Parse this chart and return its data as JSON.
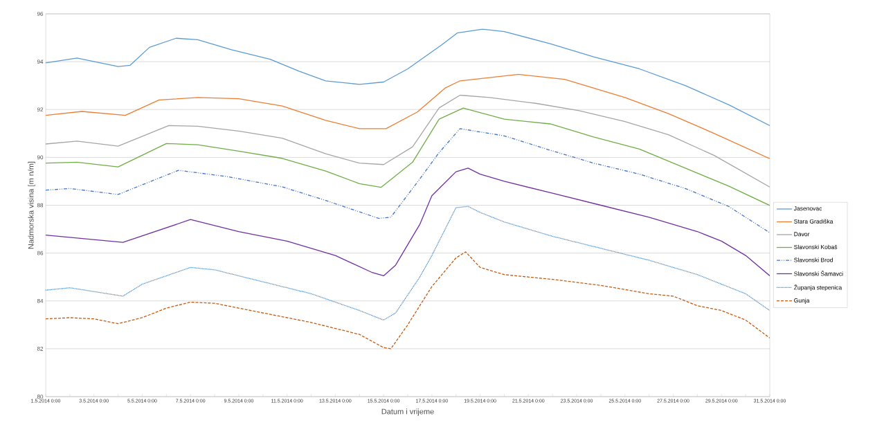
{
  "chart_data": {
    "type": "line",
    "xlabel": "Datum i vrijeme",
    "ylabel": "Nadmorska visina [m n/m]",
    "xlim": [
      "2014-05-01T00:00",
      "2014-05-31T00:00"
    ],
    "xticks": [
      {
        "value": "2014-05-01",
        "label": "1.5.2014 0:00"
      },
      {
        "value": "2014-05-02",
        "label": null
      },
      {
        "value": "2014-05-03",
        "label": "3.5.2014 0:00"
      },
      {
        "value": "2014-05-04",
        "label": null
      },
      {
        "value": "2014-05-05",
        "label": "5.5.2014 0:00"
      },
      {
        "value": "2014-05-06",
        "label": null
      },
      {
        "value": "2014-05-07",
        "label": "7.5.2014 0:00"
      },
      {
        "value": "2014-05-08",
        "label": null
      },
      {
        "value": "2014-05-09",
        "label": "9.5.2014 0:00"
      },
      {
        "value": "2014-05-10",
        "label": null
      },
      {
        "value": "2014-05-11",
        "label": "11.5.2014 0:00"
      },
      {
        "value": "2014-05-12",
        "label": null
      },
      {
        "value": "2014-05-13",
        "label": "13.5.2014 0:00"
      },
      {
        "value": "2014-05-14",
        "label": null
      },
      {
        "value": "2014-05-15",
        "label": "15.5.2014 0:00"
      },
      {
        "value": "2014-05-16",
        "label": null
      },
      {
        "value": "2014-05-17",
        "label": "17.5.2014 0:00"
      },
      {
        "value": "2014-05-18",
        "label": null
      },
      {
        "value": "2014-05-19",
        "label": "19.5.2014 0:00"
      },
      {
        "value": "2014-05-20",
        "label": null
      },
      {
        "value": "2014-05-21",
        "label": "21.5.2014 0:00"
      },
      {
        "value": "2014-05-22",
        "label": null
      },
      {
        "value": "2014-05-23",
        "label": "23.5.2014 0:00"
      },
      {
        "value": "2014-05-24",
        "label": null
      },
      {
        "value": "2014-05-25",
        "label": "25.5.2014 0:00"
      },
      {
        "value": "2014-05-26",
        "label": null
      },
      {
        "value": "2014-05-27",
        "label": "27.5.2014 0:00"
      },
      {
        "value": "2014-05-28",
        "label": null
      },
      {
        "value": "2014-05-29",
        "label": "29.5.2014 0:00"
      },
      {
        "value": "2014-05-30",
        "label": null
      },
      {
        "value": "2014-05-31",
        "label": "31.5.2014 0:00"
      }
    ],
    "ylim": [
      80,
      96
    ],
    "yticks": [
      80,
      82,
      84,
      86,
      88,
      90,
      92,
      94,
      96
    ],
    "grid": "y",
    "legend": "right",
    "series": [
      {
        "name": "Jasenovac",
        "color": "#5b9bd5",
        "line_style": "solid",
        "x": [
          "2014-05-01T00:00",
          "2014-05-02T07:12",
          "2014-05-04T00:00",
          "2014-05-04T12:00",
          "2014-05-05T07:12",
          "2014-05-06T09:36",
          "2014-05-07T07:12",
          "2014-05-08T16:48",
          "2014-05-10T07:12",
          "2014-05-11T12:00",
          "2014-05-12T14:24",
          "2014-05-14T00:00",
          "2014-05-15T00:00",
          "2014-05-16T00:00",
          "2014-05-17T09:36",
          "2014-05-18T01:12",
          "2014-05-19T02:24",
          "2014-05-20T00:00",
          "2014-05-21T21:36",
          "2014-05-23T16:48",
          "2014-05-25T14:24",
          "2014-05-27T12:00",
          "2014-05-29T07:12",
          "2014-05-31T00:00"
        ],
        "values": [
          93.95,
          94.15,
          93.8,
          93.85,
          94.6,
          94.98,
          94.92,
          94.5,
          94.1,
          93.6,
          93.2,
          93.05,
          93.15,
          93.7,
          94.7,
          95.2,
          95.36,
          95.26,
          94.75,
          94.2,
          93.7,
          93.0,
          92.2,
          91.33
        ]
      },
      {
        "name": "Stara Gradiška",
        "color": "#ed7d31",
        "line_style": "solid",
        "x": [
          "2014-05-01T00:00",
          "2014-05-02T12:00",
          "2014-05-04T07:12",
          "2014-05-05T16:48",
          "2014-05-07T07:12",
          "2014-05-09T00:00",
          "2014-05-10T19:12",
          "2014-05-12T14:24",
          "2014-05-14T00:00",
          "2014-05-15T02:24",
          "2014-05-16T09:36",
          "2014-05-17T13:12",
          "2014-05-18T04:00",
          "2014-05-20T14:24",
          "2014-05-22T12:00",
          "2014-05-25T00:00",
          "2014-05-26T19:12",
          "2014-05-28T16:48",
          "2014-05-31T00:00"
        ],
        "values": [
          91.76,
          91.92,
          91.76,
          92.4,
          92.5,
          92.45,
          92.15,
          91.55,
          91.2,
          91.2,
          91.9,
          92.9,
          93.2,
          93.47,
          93.26,
          92.5,
          91.83,
          91.0,
          89.95
        ]
      },
      {
        "name": "Davor",
        "color": "#a5a5a5",
        "line_style": "solid",
        "x": [
          "2014-05-01T00:00",
          "2014-05-02T07:12",
          "2014-05-04T00:00",
          "2014-05-06T02:24",
          "2014-05-07T07:12",
          "2014-05-09T00:00",
          "2014-05-10T19:12",
          "2014-05-12T14:24",
          "2014-05-14T00:00",
          "2014-05-15T00:00",
          "2014-05-16T04:48",
          "2014-05-17T07:12",
          "2014-05-18T04:00",
          "2014-05-19T09:36",
          "2014-05-21T07:12",
          "2014-05-23T02:24",
          "2014-05-25T00:00",
          "2014-05-26T19:12",
          "2014-05-28T16:48",
          "2014-05-31T00:00"
        ],
        "values": [
          90.56,
          90.68,
          90.47,
          91.33,
          91.3,
          91.1,
          90.8,
          90.15,
          89.76,
          89.7,
          90.44,
          92.07,
          92.6,
          92.5,
          92.26,
          91.95,
          91.5,
          90.95,
          90.08,
          88.76
        ]
      },
      {
        "name": "Slavonski Kobaš",
        "color": "#70ad47",
        "line_style": "solid",
        "x": [
          "2014-05-01T00:00",
          "2014-05-02T07:12",
          "2014-05-04T00:00",
          "2014-05-06T00:00",
          "2014-05-07T07:12",
          "2014-05-09T00:00",
          "2014-05-10T19:12",
          "2014-05-12T14:24",
          "2014-05-14T00:00",
          "2014-05-14T21:36",
          "2014-05-16T04:48",
          "2014-05-17T07:12",
          "2014-05-18T07:12",
          "2014-05-20T00:00",
          "2014-05-21T21:36",
          "2014-05-23T16:48",
          "2014-05-25T14:24",
          "2014-05-27T12:00",
          "2014-05-29T07:12",
          "2014-05-31T00:00"
        ],
        "values": [
          89.76,
          89.8,
          89.6,
          90.58,
          90.53,
          90.26,
          89.96,
          89.43,
          88.9,
          88.75,
          89.8,
          91.6,
          92.06,
          91.6,
          91.4,
          90.85,
          90.35,
          89.55,
          88.8,
          87.99
        ]
      },
      {
        "name": "Slavonski Brod",
        "color": "#4472c4",
        "line_style": "dashdot",
        "x": [
          "2014-05-01T00:00",
          "2014-05-02T00:00",
          "2014-05-04T00:00",
          "2014-05-06T12:00",
          "2014-05-08T12:00",
          "2014-05-10T19:12",
          "2014-05-12T14:24",
          "2014-05-14T19:12",
          "2014-05-15T07:12",
          "2014-05-16T12:00",
          "2014-05-17T07:12",
          "2014-05-18T04:00",
          "2014-05-20T00:00",
          "2014-05-21T21:36",
          "2014-05-23T16:48",
          "2014-05-25T14:24",
          "2014-05-27T12:00",
          "2014-05-29T07:12",
          "2014-05-31T00:00"
        ],
        "values": [
          88.63,
          88.7,
          88.45,
          89.46,
          89.2,
          88.77,
          88.2,
          87.45,
          87.5,
          89.1,
          90.2,
          91.2,
          90.9,
          90.3,
          89.76,
          89.3,
          88.7,
          87.95,
          86.85
        ]
      },
      {
        "name": "Slavonski Šamavci",
        "color": "#7030a0",
        "line_style": "solid",
        "x": [
          "2014-05-01T00:00",
          "2014-05-04T04:48",
          "2014-05-07T00:00",
          "2014-05-09T00:00",
          "2014-05-11T00:00",
          "2014-05-13T00:00",
          "2014-05-14T12:00",
          "2014-05-15T00:00",
          "2014-05-15T12:00",
          "2014-05-16T12:00",
          "2014-05-17T00:00",
          "2014-05-18T00:00",
          "2014-05-18T12:00",
          "2014-05-19T00:00",
          "2014-05-20T00:00",
          "2014-05-22T00:00",
          "2014-05-24T00:00",
          "2014-05-26T00:00",
          "2014-05-28T00:00",
          "2014-05-29T00:00",
          "2014-05-30T00:00",
          "2014-05-31T00:00"
        ],
        "values": [
          86.75,
          86.45,
          87.4,
          86.9,
          86.5,
          85.9,
          85.2,
          85.05,
          85.5,
          87.2,
          88.4,
          89.4,
          89.55,
          89.3,
          89.0,
          88.5,
          88.0,
          87.5,
          86.9,
          86.5,
          85.9,
          85.05
        ]
      },
      {
        "name": "Županja stepenica",
        "color": "#2e75b6",
        "line_style": "dotted",
        "x": [
          "2014-05-01T00:00",
          "2014-05-02T00:00",
          "2014-05-04T04:48",
          "2014-05-05T00:00",
          "2014-05-07T00:00",
          "2014-05-08T00:00",
          "2014-05-10T00:00",
          "2014-05-12T00:00",
          "2014-05-14T00:00",
          "2014-05-15T00:00",
          "2014-05-15T12:00",
          "2014-05-16T12:00",
          "2014-05-17T00:00",
          "2014-05-18T00:00",
          "2014-05-18T12:00",
          "2014-05-19T00:00",
          "2014-05-20T00:00",
          "2014-05-22T00:00",
          "2014-05-24T00:00",
          "2014-05-26T00:00",
          "2014-05-28T00:00",
          "2014-05-30T00:00",
          "2014-05-31T00:00"
        ],
        "values": [
          84.45,
          84.55,
          84.2,
          84.7,
          85.4,
          85.3,
          84.8,
          84.3,
          83.6,
          83.2,
          83.5,
          85.0,
          85.9,
          87.9,
          87.95,
          87.7,
          87.3,
          86.7,
          86.2,
          85.7,
          85.1,
          84.3,
          83.6
        ]
      },
      {
        "name": "Gunja",
        "color": "#c55a11",
        "line_style": "dashed",
        "x": [
          "2014-05-01T00:00",
          "2014-05-02T00:00",
          "2014-05-03T00:00",
          "2014-05-04T00:00",
          "2014-05-05T00:00",
          "2014-05-06T00:00",
          "2014-05-07T00:00",
          "2014-05-08T00:00",
          "2014-05-10T00:00",
          "2014-05-12T00:00",
          "2014-05-14T00:00",
          "2014-05-15T00:00",
          "2014-05-15T07:12",
          "2014-05-16T00:00",
          "2014-05-17T00:00",
          "2014-05-18T00:00",
          "2014-05-18T09:36",
          "2014-05-19T00:00",
          "2014-05-20T00:00",
          "2014-05-22T00:00",
          "2014-05-24T00:00",
          "2014-05-26T00:00",
          "2014-05-27T00:00",
          "2014-05-28T00:00",
          "2014-05-29T00:00",
          "2014-05-30T00:00",
          "2014-05-31T00:00"
        ],
        "values": [
          83.25,
          83.3,
          83.25,
          83.05,
          83.3,
          83.7,
          83.95,
          83.9,
          83.5,
          83.1,
          82.6,
          82.05,
          82.0,
          83.0,
          84.6,
          85.8,
          86.05,
          85.4,
          85.1,
          84.9,
          84.65,
          84.3,
          84.2,
          83.8,
          83.6,
          83.2,
          82.45
        ]
      }
    ]
  }
}
